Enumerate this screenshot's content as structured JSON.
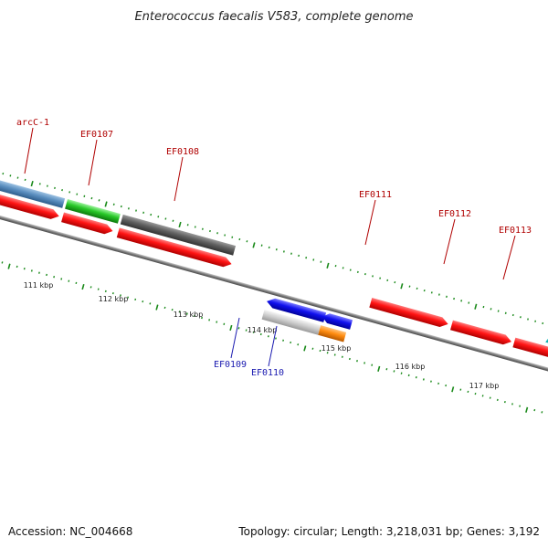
{
  "title": "Enterococcus faecalis V583, complete genome",
  "footer": {
    "accession": "Accession: NC_004668",
    "summary": "Topology: circular; Length: 3,218,031 bp; Genes: 3,192"
  },
  "kbp_labels": [
    "111 kbp",
    "112 kbp",
    "113 kbp",
    "114 kbp",
    "115 kbp",
    "116 kbp",
    "117 kbp"
  ],
  "genes": {
    "arcC1": "arcC-1",
    "ef0107": "EF0107",
    "ef0108": "EF0108",
    "ef0109": "EF0109",
    "ef0110": "EF0110",
    "ef0111": "EF0111",
    "ef0112": "EF0112",
    "ef0113": "EF0113"
  },
  "colors": {
    "cds": "#ff0000",
    "backbone": "#808080",
    "tick": "#1a8a1a",
    "label_forward": "#b00000",
    "label_reverse": "#1a1ab0"
  }
}
